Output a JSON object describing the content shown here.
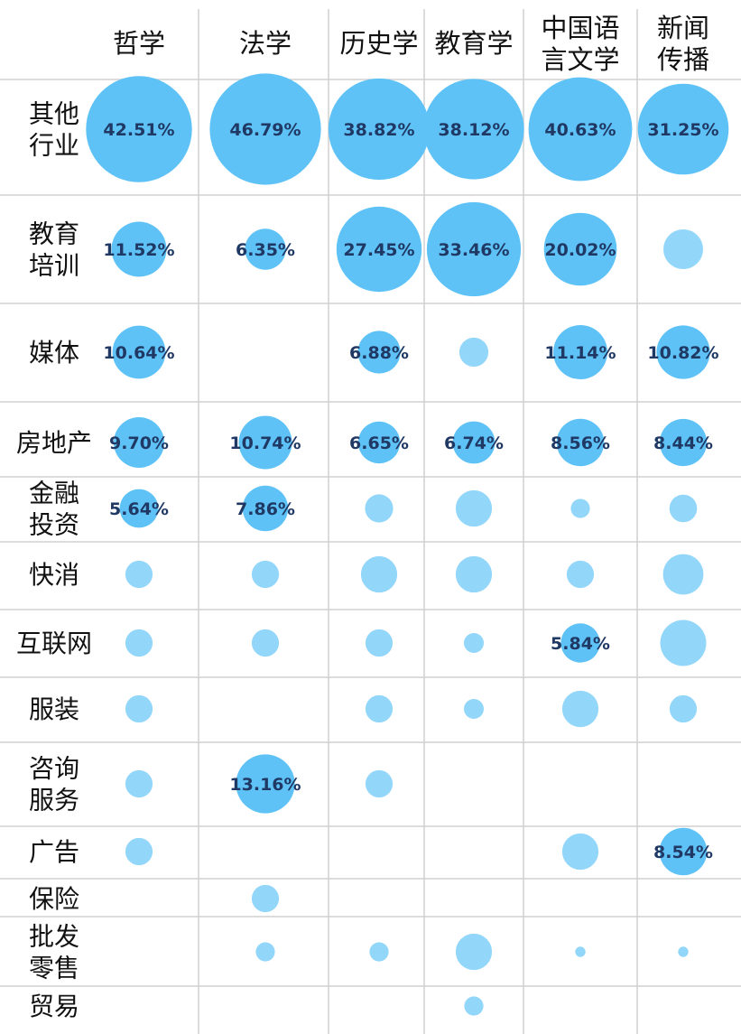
{
  "chart_data": {
    "type": "bubble",
    "columns": [
      [
        "哲学"
      ],
      [
        "法学"
      ],
      [
        "历史学"
      ],
      [
        "教育学"
      ],
      [
        "中国语",
        "言文学"
      ],
      [
        "新闻",
        "传播"
      ]
    ],
    "rows": [
      [
        "其他",
        "行业"
      ],
      [
        "教育",
        "培训"
      ],
      [
        "媒体"
      ],
      [
        "房地产"
      ],
      [
        "金融",
        "投资"
      ],
      [
        "快消"
      ],
      [
        "互联网"
      ],
      [
        "服装"
      ],
      [
        "咨询",
        "服务"
      ],
      [
        "广告"
      ],
      [
        "保险"
      ],
      [
        "批发",
        "零售"
      ],
      [
        "贸易"
      ]
    ],
    "cells": [
      {
        "row": 0,
        "col": 0,
        "value": 42.51,
        "label": "42.51%"
      },
      {
        "row": 0,
        "col": 1,
        "value": 46.79,
        "label": "46.79%"
      },
      {
        "row": 0,
        "col": 2,
        "value": 38.82,
        "label": "38.82%"
      },
      {
        "row": 0,
        "col": 3,
        "value": 38.12,
        "label": "38.12%"
      },
      {
        "row": 0,
        "col": 4,
        "value": 40.63,
        "label": "40.63%"
      },
      {
        "row": 0,
        "col": 5,
        "value": 31.25,
        "label": "31.25%"
      },
      {
        "row": 1,
        "col": 0,
        "value": 11.52,
        "label": "11.52%"
      },
      {
        "row": 1,
        "col": 1,
        "value": 6.35,
        "label": "6.35%"
      },
      {
        "row": 1,
        "col": 2,
        "value": 27.45,
        "label": "27.45%"
      },
      {
        "row": 1,
        "col": 3,
        "value": 33.46,
        "label": "33.46%"
      },
      {
        "row": 1,
        "col": 4,
        "value": 20.02,
        "label": "20.02%"
      },
      {
        "row": 1,
        "col": 5,
        "value": 6.0
      },
      {
        "row": 2,
        "col": 0,
        "value": 10.64,
        "label": "10.64%"
      },
      {
        "row": 2,
        "col": 2,
        "value": 6.88,
        "label": "6.88%"
      },
      {
        "row": 2,
        "col": 3,
        "value": 3.2
      },
      {
        "row": 2,
        "col": 4,
        "value": 11.14,
        "label": "11.14%"
      },
      {
        "row": 2,
        "col": 5,
        "value": 10.82,
        "label": "10.82%"
      },
      {
        "row": 3,
        "col": 0,
        "value": 9.7,
        "label": "9.70%"
      },
      {
        "row": 3,
        "col": 1,
        "value": 10.74,
        "label": "10.74%"
      },
      {
        "row": 3,
        "col": 2,
        "value": 6.65,
        "label": "6.65%"
      },
      {
        "row": 3,
        "col": 3,
        "value": 6.74,
        "label": "6.74%"
      },
      {
        "row": 3,
        "col": 4,
        "value": 8.56,
        "label": "8.56%"
      },
      {
        "row": 3,
        "col": 5,
        "value": 8.44,
        "label": "8.44%"
      },
      {
        "row": 4,
        "col": 0,
        "value": 5.64,
        "label": "5.64%"
      },
      {
        "row": 4,
        "col": 1,
        "value": 7.86,
        "label": "7.86%"
      },
      {
        "row": 4,
        "col": 2,
        "value": 3.0
      },
      {
        "row": 4,
        "col": 3,
        "value": 5.0
      },
      {
        "row": 4,
        "col": 4,
        "value": 1.4
      },
      {
        "row": 4,
        "col": 5,
        "value": 2.9
      },
      {
        "row": 5,
        "col": 0,
        "value": 2.8
      },
      {
        "row": 5,
        "col": 1,
        "value": 2.8
      },
      {
        "row": 5,
        "col": 2,
        "value": 5.0
      },
      {
        "row": 5,
        "col": 3,
        "value": 5.0
      },
      {
        "row": 5,
        "col": 4,
        "value": 2.8
      },
      {
        "row": 5,
        "col": 5,
        "value": 6.2
      },
      {
        "row": 6,
        "col": 0,
        "value": 2.8
      },
      {
        "row": 6,
        "col": 1,
        "value": 2.8
      },
      {
        "row": 6,
        "col": 2,
        "value": 2.8
      },
      {
        "row": 6,
        "col": 3,
        "value": 1.5
      },
      {
        "row": 6,
        "col": 4,
        "value": 5.84,
        "label": "5.84%"
      },
      {
        "row": 6,
        "col": 5,
        "value": 8.0
      },
      {
        "row": 7,
        "col": 0,
        "value": 2.8
      },
      {
        "row": 7,
        "col": 2,
        "value": 2.8
      },
      {
        "row": 7,
        "col": 3,
        "value": 1.5
      },
      {
        "row": 7,
        "col": 4,
        "value": 5.0
      },
      {
        "row": 7,
        "col": 5,
        "value": 2.8
      },
      {
        "row": 8,
        "col": 0,
        "value": 2.8
      },
      {
        "row": 8,
        "col": 1,
        "value": 13.16,
        "label": "13.16%"
      },
      {
        "row": 8,
        "col": 2,
        "value": 2.8
      },
      {
        "row": 9,
        "col": 0,
        "value": 2.8
      },
      {
        "row": 9,
        "col": 4,
        "value": 5.0
      },
      {
        "row": 9,
        "col": 5,
        "value": 8.54,
        "label": "8.54%"
      },
      {
        "row": 10,
        "col": 1,
        "value": 2.8
      },
      {
        "row": 11,
        "col": 1,
        "value": 1.4
      },
      {
        "row": 11,
        "col": 2,
        "value": 1.4
      },
      {
        "row": 11,
        "col": 3,
        "value": 5.0
      },
      {
        "row": 11,
        "col": 4,
        "value": 0.4
      },
      {
        "row": 11,
        "col": 5,
        "value": 0.4
      },
      {
        "row": 12,
        "col": 3,
        "value": 1.4
      }
    ],
    "colors": {
      "labeled": "#5ec2f7",
      "unlabeled": "#92d6fa",
      "value_text": "#1f3864",
      "grid": "#d0d0d0",
      "text": "#111111"
    }
  }
}
